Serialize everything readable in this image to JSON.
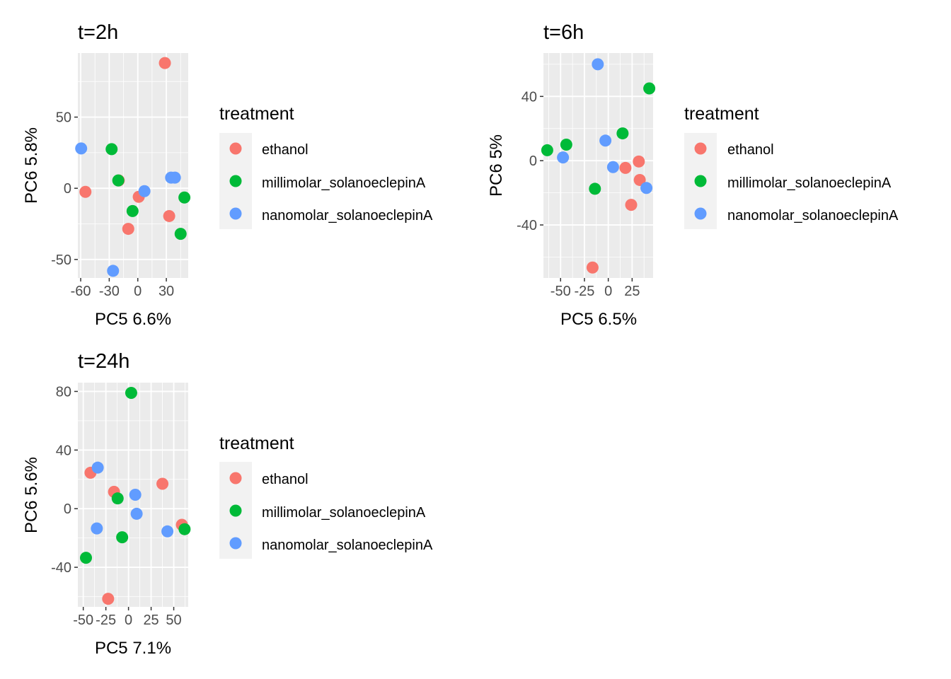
{
  "legend": {
    "title": "treatment",
    "entries": [
      {
        "label": "ethanol",
        "color": "#F8766D"
      },
      {
        "label": "millimolar_solanoeclepinA",
        "color": "#00BA38"
      },
      {
        "label": "nanomolar_solanoeclepinA",
        "color": "#619CFF"
      }
    ]
  },
  "chart_data": [
    {
      "type": "scatter",
      "title": "t=2h",
      "xlabel": "PC5 6.6%",
      "ylabel": "PC6 5.8%",
      "xlim": [
        -63,
        53
      ],
      "ylim": [
        -63,
        95
      ],
      "xticks": [
        -60,
        -30,
        0,
        30
      ],
      "xtick_labels": [
        "-60",
        "-30",
        "0",
        "30"
      ],
      "yticks": [
        -50,
        0,
        50
      ],
      "ytick_labels": [
        "-50",
        "0",
        "50"
      ],
      "grid": true,
      "legend_position": "right",
      "series": [
        {
          "name": "ethanol",
          "color": "#F8766D",
          "points": [
            [
              28.5,
              88
            ],
            [
              -55,
              -2.5
            ],
            [
              1,
              -6
            ],
            [
              -10,
              -28.5
            ],
            [
              33,
              -19.5
            ],
            [
              -20,
              5.5
            ]
          ]
        },
        {
          "name": "millimolar_solanoeclepinA",
          "color": "#00BA38",
          "points": [
            [
              -27.5,
              27.5
            ],
            [
              -20.5,
              5.5
            ],
            [
              -5.5,
              -16
            ],
            [
              49,
              -6.5
            ],
            [
              45,
              -32
            ]
          ]
        },
        {
          "name": "nanomolar_solanoeclepinA",
          "color": "#619CFF",
          "points": [
            [
              -59.5,
              28
            ],
            [
              7,
              -2
            ],
            [
              35,
              7.5
            ],
            [
              39,
              7.5
            ],
            [
              -26,
              -58
            ]
          ]
        }
      ]
    },
    {
      "type": "scatter",
      "title": "t=6h",
      "xlabel": "PC5 6.5%",
      "ylabel": "PC6 5%",
      "xlim": [
        -68,
        47
      ],
      "ylim": [
        -73,
        67
      ],
      "xticks": [
        -50,
        -25,
        0,
        25
      ],
      "xtick_labels": [
        "-50",
        "-25",
        "0",
        "25"
      ],
      "yticks": [
        -40,
        0,
        40
      ],
      "ytick_labels": [
        "-40",
        "0",
        "40"
      ],
      "grid": true,
      "legend_position": "right",
      "series": [
        {
          "name": "ethanol",
          "color": "#F8766D",
          "points": [
            [
              32,
              -0.5
            ],
            [
              18,
              -4.5
            ],
            [
              33,
              -12
            ],
            [
              24,
              -27.5
            ],
            [
              -16.5,
              -66.5
            ]
          ]
        },
        {
          "name": "millimolar_solanoeclepinA",
          "color": "#00BA38",
          "points": [
            [
              43,
              45
            ],
            [
              15,
              17
            ],
            [
              -64,
              6.5
            ],
            [
              -44,
              10
            ],
            [
              -14,
              -17.5
            ]
          ]
        },
        {
          "name": "nanomolar_solanoeclepinA",
          "color": "#619CFF",
          "points": [
            [
              -11,
              60
            ],
            [
              -3,
              12.5
            ],
            [
              -47.5,
              2
            ],
            [
              5,
              -4
            ],
            [
              40,
              -17
            ]
          ]
        }
      ]
    },
    {
      "type": "scatter",
      "title": "t=24h",
      "xlabel": "PC5 7.1%",
      "ylabel": "PC6 5.6%",
      "xlim": [
        -56,
        66
      ],
      "ylim": [
        -67,
        86
      ],
      "xticks": [
        -50,
        -25,
        0,
        25,
        50
      ],
      "xtick_labels": [
        "-50",
        "-25",
        "0",
        "25",
        "50"
      ],
      "yticks": [
        -40,
        0,
        40,
        80
      ],
      "ytick_labels": [
        "-40",
        "0",
        "40",
        "80"
      ],
      "grid": true,
      "legend_position": "right",
      "series": [
        {
          "name": "ethanol",
          "color": "#F8766D",
          "points": [
            [
              -42,
              24.5
            ],
            [
              -16,
              11.5
            ],
            [
              37.5,
              17
            ],
            [
              59,
              -11
            ],
            [
              -22.5,
              -61.5
            ]
          ]
        },
        {
          "name": "millimolar_solanoeclepinA",
          "color": "#00BA38",
          "points": [
            [
              3,
              79
            ],
            [
              -12,
              7
            ],
            [
              -7,
              -19.5
            ],
            [
              62,
              -14
            ],
            [
              -47,
              -33.5
            ]
          ]
        },
        {
          "name": "nanomolar_solanoeclepinA",
          "color": "#619CFF",
          "points": [
            [
              -34,
              28
            ],
            [
              7.5,
              9.5
            ],
            [
              9,
              -3.5
            ],
            [
              -35,
              -13.5
            ],
            [
              43,
              -15.5
            ]
          ]
        }
      ]
    }
  ]
}
